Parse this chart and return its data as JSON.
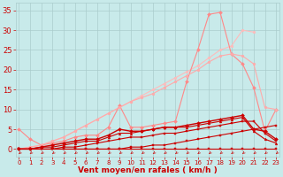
{
  "xlabel": "Vent moyen/en rafales ( km/h )",
  "background_color": "#c8eaea",
  "grid_color": "#aacccc",
  "x_values": [
    0,
    1,
    2,
    3,
    4,
    5,
    6,
    7,
    8,
    9,
    10,
    11,
    12,
    13,
    14,
    15,
    16,
    17,
    18,
    19,
    20,
    21,
    22,
    23
  ],
  "lines": [
    {
      "y": [
        0,
        0,
        0,
        0,
        0,
        0,
        0,
        0,
        0,
        0,
        0,
        0,
        0,
        0,
        0,
        0,
        0,
        0,
        0,
        0,
        0,
        0,
        0,
        0
      ],
      "color": "#cc0000",
      "lw": 0.8,
      "marker": "s",
      "ms": 1.5,
      "zorder": 3
    },
    {
      "y": [
        0,
        0,
        0,
        0,
        0,
        0,
        0,
        0,
        0,
        0,
        0.5,
        0.5,
        1,
        1,
        1.5,
        2,
        2.5,
        3,
        3.5,
        4,
        4.5,
        5,
        5.5,
        6
      ],
      "color": "#cc0000",
      "lw": 0.8,
      "marker": "s",
      "ms": 1.5,
      "zorder": 3
    },
    {
      "y": [
        0,
        0,
        0,
        0,
        0.5,
        0.5,
        1,
        1.5,
        2,
        2.5,
        3,
        3,
        3.5,
        4,
        4,
        4.5,
        5,
        5.5,
        6,
        6.5,
        7,
        7,
        4,
        2
      ],
      "color": "#cc0000",
      "lw": 0.8,
      "marker": "s",
      "ms": 1.5,
      "zorder": 3
    },
    {
      "y": [
        0,
        0,
        0.5,
        0.5,
        1,
        1.5,
        2,
        2,
        3,
        4,
        4,
        4.5,
        5,
        5.5,
        5.5,
        5.5,
        6,
        6.5,
        7,
        7.5,
        8,
        4.5,
        2.5,
        1.5
      ],
      "color": "#cc0000",
      "lw": 0.8,
      "marker": "^",
      "ms": 2,
      "zorder": 3
    },
    {
      "y": [
        0,
        0,
        0.5,
        1,
        1.5,
        2,
        2.5,
        2.5,
        3.5,
        5,
        4.5,
        4.5,
        5,
        5.5,
        5.5,
        6,
        6.5,
        7,
        7.5,
        8,
        8.5,
        5,
        4.5,
        2.5
      ],
      "color": "#cc0000",
      "lw": 1.0,
      "marker": "D",
      "ms": 2,
      "zorder": 4
    },
    {
      "y": [
        5,
        2.5,
        1,
        1.5,
        2,
        3,
        3.5,
        3.5,
        5.5,
        11,
        5.5,
        5.5,
        6,
        6.5,
        7,
        17,
        25,
        34,
        34.5,
        24,
        21.5,
        15.5,
        4.5,
        10
      ],
      "color": "#ff8888",
      "lw": 0.8,
      "marker": "D",
      "ms": 2,
      "zorder": 2
    },
    {
      "y": [
        0,
        0.5,
        1,
        2,
        3,
        4.5,
        6,
        7.5,
        9,
        10.5,
        12,
        13,
        14,
        15.5,
        17,
        18.5,
        20,
        22,
        23.5,
        24,
        23.5,
        21.5,
        10.5,
        10
      ],
      "color": "#ffaaaa",
      "lw": 0.8,
      "marker": "o",
      "ms": 2,
      "zorder": 2
    },
    {
      "y": [
        0,
        0.5,
        1,
        2,
        3,
        4.5,
        6,
        7.5,
        9,
        10.5,
        12,
        13.5,
        15,
        16.5,
        18,
        19.5,
        21,
        23,
        25,
        26,
        30,
        29.5,
        null,
        null
      ],
      "color": "#ffbbbb",
      "lw": 0.8,
      "marker": "o",
      "ms": 2,
      "zorder": 1
    }
  ],
  "yticks": [
    0,
    5,
    10,
    15,
    20,
    25,
    30,
    35
  ],
  "xticks": [
    0,
    1,
    2,
    3,
    4,
    5,
    6,
    7,
    8,
    9,
    10,
    11,
    12,
    13,
    14,
    15,
    16,
    17,
    18,
    19,
    20,
    21,
    22,
    23
  ],
  "ylim": [
    -2,
    37
  ],
  "xlim": [
    -0.3,
    23.3
  ],
  "tick_color": "#cc0000",
  "xlabel_color": "#cc0000",
  "label_fontsize": 6,
  "xlabel_fontsize": 6.5,
  "ytick_fontsize": 6,
  "xtick_fontsize": 5
}
